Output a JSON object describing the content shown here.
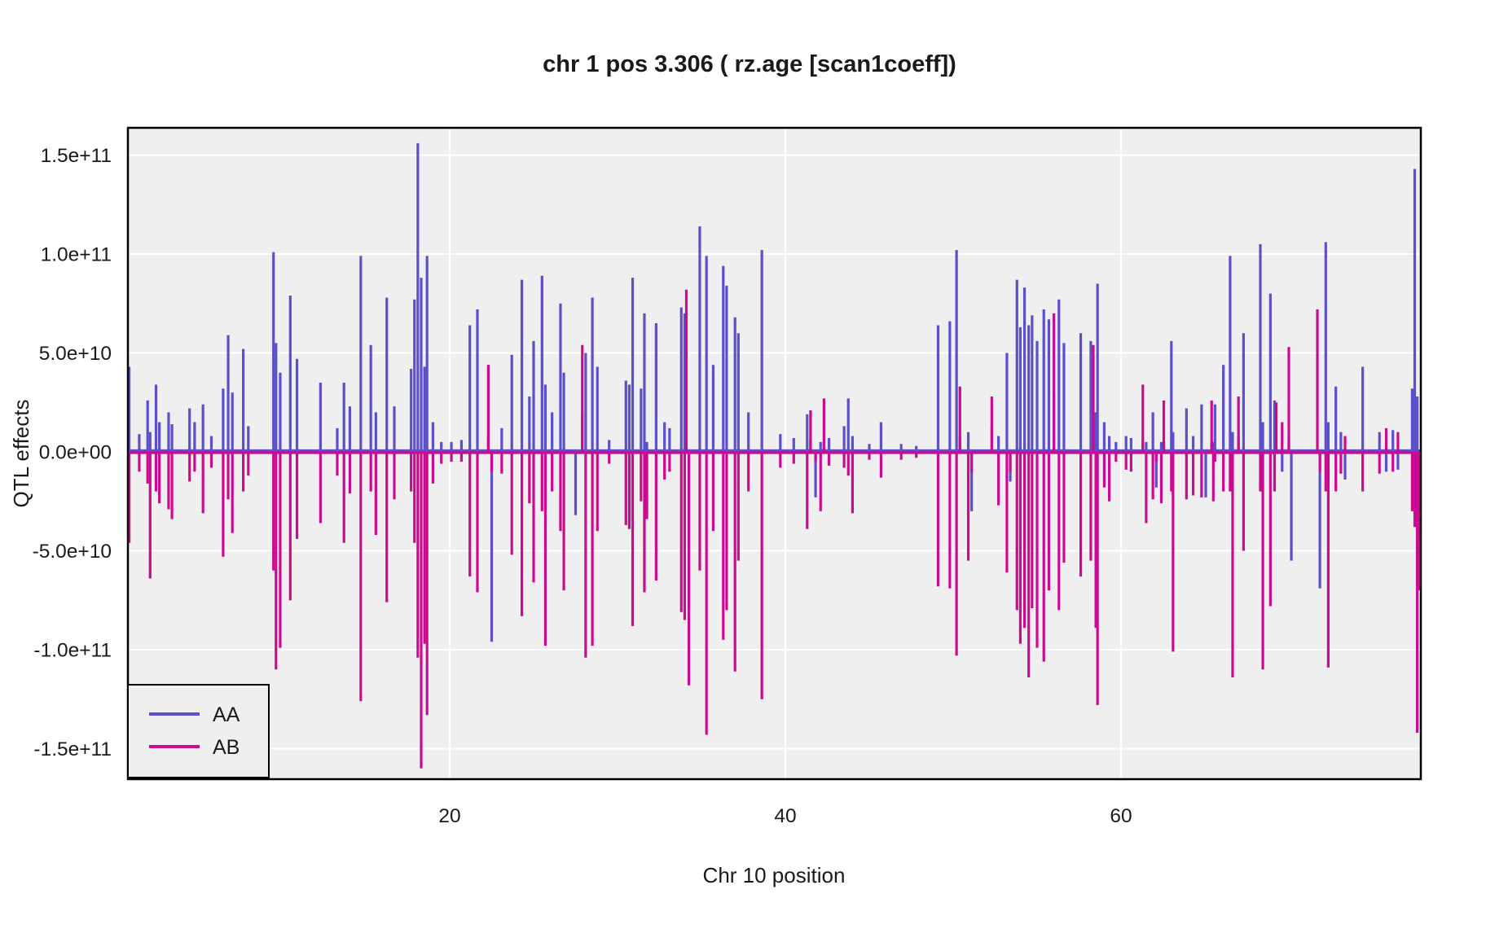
{
  "figure": {
    "title": "chr 1 pos 3.306 ( rz.age  [scan1coeff])"
  },
  "colors": {
    "aa_line": "#5B50C9",
    "ab_line": "#CB0A92",
    "panel_background": "#EFEFEF",
    "gridline": "#FFFFFF",
    "panel_border": "#000000",
    "text": "#1a1a1a",
    "outer_background": "#FFFFFF"
  },
  "chart_data": {
    "type": "line",
    "title": "chr 1 pos 3.306 ( rz.age  [scan1coeff])",
    "xlabel": "Chr 10 position",
    "ylabel": "QTL effects",
    "xlim": [
      0.8,
      77.9
    ],
    "ylim": [
      -165000000000.0,
      164000000000.0
    ],
    "x_ticks": [
      20,
      40,
      60
    ],
    "y_ticks": [
      {
        "value": 15,
        "label": "1.5e+11"
      },
      {
        "value": 10,
        "label": "1.0e+11"
      },
      {
        "value": 5,
        "label": "5.0e+10"
      },
      {
        "value": 0,
        "label": "0.0e+00"
      },
      {
        "value": -5,
        "label": "-5.0e+10"
      },
      {
        "value": -10,
        "label": "-1.0e+11"
      },
      {
        "value": -15,
        "label": "-1.5e+11"
      }
    ],
    "grid": "major white gridlines on gray panel, no minor gridlines",
    "legend": {
      "position": "bottom-left-inside",
      "entries": [
        {
          "name": "AA",
          "color": "#5B50C9"
        },
        {
          "name": "AB",
          "color": "#CB0A92"
        }
      ]
    },
    "value_unit": 10000000000.0,
    "baseline": 0,
    "series_note": "Two spiky coefficient traces hugging zero; spikes listed as [position, AA, AB] in units of 1e10; null = no visible excursion for that series at that position.",
    "spikes": [
      [
        0.9,
        4.3,
        -4.6
      ],
      [
        1.5,
        0.9,
        -1.0
      ],
      [
        2.0,
        2.6,
        -1.6
      ],
      [
        2.15,
        1.0,
        -6.4
      ],
      [
        2.5,
        3.4,
        -2.0
      ],
      [
        2.7,
        1.5,
        -2.6
      ],
      [
        3.25,
        2.0,
        -2.9
      ],
      [
        3.45,
        1.4,
        -3.4
      ],
      [
        4.5,
        2.2,
        -1.5
      ],
      [
        4.8,
        1.5,
        -1.0
      ],
      [
        5.3,
        2.4,
        -3.1
      ],
      [
        5.8,
        0.8,
        -0.8
      ],
      [
        6.5,
        3.2,
        -5.3
      ],
      [
        6.8,
        5.9,
        -2.4
      ],
      [
        7.05,
        3.0,
        -4.1
      ],
      [
        7.7,
        5.2,
        -2.0
      ],
      [
        8.0,
        1.3,
        -1.2
      ],
      [
        9.5,
        10.1,
        -6.0
      ],
      [
        9.65,
        5.5,
        -11.0
      ],
      [
        9.9,
        4.0,
        -9.9
      ],
      [
        10.5,
        7.9,
        -7.5
      ],
      [
        10.9,
        4.7,
        -4.4
      ],
      [
        12.3,
        3.5,
        -3.6
      ],
      [
        13.3,
        1.2,
        -1.2
      ],
      [
        13.7,
        3.5,
        -4.6
      ],
      [
        14.05,
        2.3,
        -2.1
      ],
      [
        14.7,
        9.9,
        -12.6
      ],
      [
        15.3,
        5.4,
        -2.0
      ],
      [
        15.6,
        2.0,
        -4.2
      ],
      [
        16.25,
        7.8,
        -7.6
      ],
      [
        16.7,
        2.3,
        -2.4
      ],
      [
        17.7,
        4.2,
        -2.0
      ],
      [
        17.9,
        7.7,
        -4.6
      ],
      [
        18.1,
        15.6,
        -10.4
      ],
      [
        18.3,
        8.8,
        -16.0
      ],
      [
        18.5,
        4.3,
        -9.7
      ],
      [
        18.65,
        9.9,
        -13.3
      ],
      [
        19.0,
        1.5,
        -1.6
      ],
      [
        19.5,
        0.5,
        -0.6
      ],
      [
        20.1,
        0.5,
        -0.5
      ],
      [
        20.7,
        0.6,
        -0.5
      ],
      [
        21.2,
        6.4,
        -6.3
      ],
      [
        21.65,
        7.2,
        -7.1
      ],
      [
        22.3,
        0.8,
        4.4
      ],
      [
        22.5,
        -9.6,
        -1.0
      ],
      [
        23.1,
        1.2,
        -1.1
      ],
      [
        23.7,
        4.9,
        -5.2
      ],
      [
        24.3,
        8.7,
        -8.3
      ],
      [
        24.75,
        2.8,
        -2.6
      ],
      [
        25.0,
        5.6,
        -6.6
      ],
      [
        25.5,
        8.9,
        -3.0
      ],
      [
        25.7,
        3.4,
        -9.8
      ],
      [
        26.1,
        2.0,
        -2.0
      ],
      [
        26.6,
        7.5,
        -4.0
      ],
      [
        26.8,
        4.0,
        -7.0
      ],
      [
        27.5,
        -3.2,
        null
      ],
      [
        27.9,
        2.0,
        5.4
      ],
      [
        28.1,
        5.0,
        -10.4
      ],
      [
        28.5,
        7.8,
        -9.8
      ],
      [
        28.8,
        4.3,
        -4.0
      ],
      [
        29.5,
        0.6,
        -0.6
      ],
      [
        30.5,
        3.6,
        -3.7
      ],
      [
        30.7,
        3.4,
        -3.9
      ],
      [
        30.9,
        8.8,
        -8.8
      ],
      [
        31.4,
        3.2,
        -2.5
      ],
      [
        31.6,
        7.0,
        -7.1
      ],
      [
        31.75,
        0.5,
        -3.4
      ],
      [
        32.3,
        6.5,
        -6.5
      ],
      [
        32.8,
        1.5,
        -1.4
      ],
      [
        33.1,
        1.2,
        -1.0
      ],
      [
        33.8,
        7.3,
        -8.1
      ],
      [
        34.0,
        7.0,
        -8.5
      ],
      [
        34.1,
        0.5,
        8.2
      ],
      [
        34.25,
        -8.0,
        -11.8
      ],
      [
        34.9,
        11.4,
        -6.0
      ],
      [
        35.3,
        9.9,
        -14.3
      ],
      [
        35.7,
        4.4,
        -4.0
      ],
      [
        36.3,
        9.4,
        -9.5
      ],
      [
        36.5,
        8.4,
        -8.0
      ],
      [
        37.0,
        6.8,
        -11.1
      ],
      [
        37.2,
        6.0,
        -5.5
      ],
      [
        37.8,
        2.0,
        -2.0
      ],
      [
        38.6,
        10.2,
        -12.5
      ],
      [
        39.7,
        0.9,
        -0.8
      ],
      [
        40.5,
        0.7,
        -0.6
      ],
      [
        41.3,
        1.9,
        -3.9
      ],
      [
        41.5,
        0.6,
        2.1
      ],
      [
        41.8,
        -2.3,
        -0.5
      ],
      [
        42.1,
        0.5,
        -3.0
      ],
      [
        42.3,
        0.5,
        2.7
      ],
      [
        42.6,
        0.7,
        -0.7
      ],
      [
        43.5,
        1.3,
        -0.8
      ],
      [
        43.75,
        2.7,
        -1.2
      ],
      [
        44.0,
        0.8,
        -3.1
      ],
      [
        45.0,
        0.4,
        -0.4
      ],
      [
        45.7,
        1.5,
        -1.3
      ],
      [
        46.9,
        0.4,
        -0.4
      ],
      [
        47.8,
        0.3,
        -0.3
      ],
      [
        49.1,
        6.4,
        -6.8
      ],
      [
        49.8,
        6.6,
        -6.9
      ],
      [
        50.2,
        10.2,
        -10.3
      ],
      [
        50.4,
        0.8,
        3.3
      ],
      [
        50.9,
        1.0,
        -5.5
      ],
      [
        51.1,
        -3.0,
        -1.0
      ],
      [
        52.3,
        1.2,
        2.8
      ],
      [
        52.7,
        0.8,
        -2.7
      ],
      [
        53.2,
        5.0,
        -6.1
      ],
      [
        53.4,
        -1.5,
        -1.0
      ],
      [
        53.8,
        8.7,
        -8.0
      ],
      [
        54.0,
        6.3,
        -9.7
      ],
      [
        54.25,
        8.3,
        -8.9
      ],
      [
        54.5,
        6.4,
        -11.4
      ],
      [
        54.7,
        6.9,
        -7.9
      ],
      [
        55.0,
        5.6,
        -9.9
      ],
      [
        55.4,
        7.2,
        -10.6
      ],
      [
        55.7,
        6.7,
        -7.0
      ],
      [
        56.0,
        3.0,
        7.0
      ],
      [
        56.3,
        7.7,
        -8.0
      ],
      [
        56.6,
        5.5,
        -5.6
      ],
      [
        57.6,
        6.0,
        -6.3
      ],
      [
        58.2,
        5.6,
        -5.5
      ],
      [
        58.35,
        null,
        5.4
      ],
      [
        58.5,
        2.0,
        -8.9
      ],
      [
        58.6,
        8.5,
        -12.8
      ],
      [
        59.0,
        1.5,
        -1.8
      ],
      [
        59.3,
        0.8,
        -2.5
      ],
      [
        59.7,
        0.5,
        -0.5
      ],
      [
        60.3,
        0.8,
        -0.9
      ],
      [
        60.6,
        0.7,
        -1.0
      ],
      [
        61.3,
        0.6,
        3.4
      ],
      [
        61.5,
        0.5,
        -3.6
      ],
      [
        61.9,
        2.0,
        -2.4
      ],
      [
        62.1,
        -1.8,
        -0.5
      ],
      [
        62.4,
        0.5,
        -2.6
      ],
      [
        62.55,
        0.5,
        2.6
      ],
      [
        63.0,
        5.6,
        -2.0
      ],
      [
        63.1,
        1.0,
        -10.1
      ],
      [
        63.9,
        2.2,
        -2.4
      ],
      [
        64.3,
        0.8,
        -2.2
      ],
      [
        64.8,
        2.4,
        -2.3
      ],
      [
        65.05,
        -2.3,
        null
      ],
      [
        65.4,
        0.6,
        2.6
      ],
      [
        65.5,
        0.5,
        -2.5
      ],
      [
        65.6,
        2.4,
        -0.5
      ],
      [
        66.1,
        4.4,
        -2.0
      ],
      [
        66.5,
        9.9,
        -2.0
      ],
      [
        66.65,
        1.0,
        -11.4
      ],
      [
        67.0,
        0.8,
        2.8
      ],
      [
        67.3,
        6.0,
        -5.0
      ],
      [
        68.3,
        10.5,
        -2.0
      ],
      [
        68.45,
        1.5,
        -11.0
      ],
      [
        68.9,
        8.0,
        -7.8
      ],
      [
        69.15,
        2.6,
        -2.0
      ],
      [
        69.25,
        null,
        2.5
      ],
      [
        69.6,
        -1.0,
        1.5
      ],
      [
        70.0,
        0.5,
        5.3
      ],
      [
        70.15,
        -5.5,
        null
      ],
      [
        71.7,
        null,
        7.2
      ],
      [
        71.85,
        -6.9,
        -1.0
      ],
      [
        72.2,
        10.6,
        -2.0
      ],
      [
        72.35,
        1.5,
        -10.9
      ],
      [
        72.8,
        3.3,
        -2.0
      ],
      [
        73.1,
        1.0,
        -1.1
      ],
      [
        73.35,
        -1.4,
        0.8
      ],
      [
        74.4,
        4.3,
        -2.0
      ],
      [
        75.4,
        1.0,
        -1.1
      ],
      [
        75.8,
        -1.0,
        1.2
      ],
      [
        76.2,
        1.1,
        -1.0
      ],
      [
        76.5,
        -0.9,
        1.0
      ],
      [
        77.35,
        3.2,
        -3.0
      ],
      [
        77.5,
        14.3,
        -3.8
      ],
      [
        77.65,
        2.8,
        -14.2
      ],
      [
        77.8,
        -4.4,
        -7.0
      ]
    ]
  }
}
